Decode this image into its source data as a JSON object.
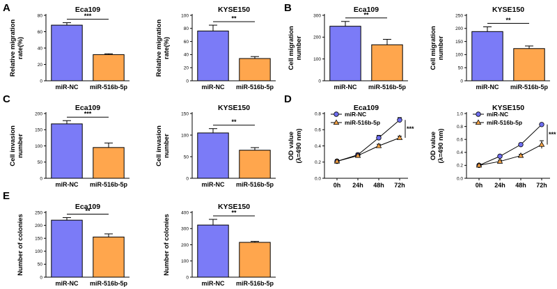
{
  "colors": {
    "mir_nc": "#7B7BF7",
    "mir_516b": "#FFA64D",
    "line_nc": "#6E6EF0",
    "line_516b": "#F5A448"
  },
  "panels": [
    "A",
    "B",
    "C",
    "D",
    "E"
  ],
  "chart_data": [
    {
      "id": "A1",
      "type": "bar",
      "title": "Eca109",
      "ylabel": "Relative migration\nrate(%)",
      "categories": [
        "miR-NC",
        "miR-516b-5p"
      ],
      "values": [
        68,
        32
      ],
      "errors": [
        3,
        1
      ],
      "ylim": [
        0,
        80
      ],
      "yticks": [
        0,
        20,
        40,
        60,
        80
      ],
      "significance": "***"
    },
    {
      "id": "A2",
      "type": "bar",
      "title": "KYSE150",
      "ylabel": "Relative migration\nrate(%)",
      "categories": [
        "miR-NC",
        "miR-516b-5p"
      ],
      "values": [
        76,
        34
      ],
      "errors": [
        9,
        3
      ],
      "ylim": [
        0,
        100
      ],
      "yticks": [
        0,
        20,
        40,
        60,
        80,
        100
      ],
      "significance": "**"
    },
    {
      "id": "B1",
      "type": "bar",
      "title": "Eca109",
      "ylabel": "Cell migration\nnumber",
      "categories": [
        "miR-NC",
        "miR-516b-5p"
      ],
      "values": [
        250,
        165
      ],
      "errors": [
        22,
        25
      ],
      "ylim": [
        0,
        300
      ],
      "yticks": [
        0,
        100,
        200,
        300
      ],
      "significance": "**"
    },
    {
      "id": "B2",
      "type": "bar",
      "title": "KYSE150",
      "ylabel": "Cell migration\nnumber",
      "categories": [
        "miR-NC",
        "miR-516b-5p"
      ],
      "values": [
        188,
        123
      ],
      "errors": [
        18,
        10
      ],
      "ylim": [
        0,
        250
      ],
      "yticks": [
        0,
        50,
        100,
        150,
        200,
        250
      ],
      "significance": "**"
    },
    {
      "id": "C1",
      "type": "bar",
      "title": "Eca109",
      "ylabel": "Cell invasion\nnumber",
      "categories": [
        "miR-NC",
        "miR-516b-5p"
      ],
      "values": [
        168,
        95
      ],
      "errors": [
        10,
        14
      ],
      "ylim": [
        0,
        200
      ],
      "yticks": [
        0,
        50,
        100,
        150,
        200
      ],
      "significance": "***"
    },
    {
      "id": "C2",
      "type": "bar",
      "title": "KYSE150",
      "ylabel": "Cell invasion\nnumber",
      "categories": [
        "miR-NC",
        "miR-516b-5p"
      ],
      "values": [
        105,
        65
      ],
      "errors": [
        10,
        6
      ],
      "ylim": [
        0,
        150
      ],
      "yticks": [
        0,
        50,
        100,
        150
      ],
      "significance": "**"
    },
    {
      "id": "D1",
      "type": "line",
      "title": "Eca109",
      "ylabel": "OD value\n(λ=490 nm)",
      "x": [
        "0h",
        "24h",
        "48h",
        "72h"
      ],
      "series": [
        {
          "name": "miR-NC",
          "values": [
            0.21,
            0.29,
            0.5,
            0.72
          ],
          "errors": [
            0.02,
            0.02,
            0.03,
            0.03
          ]
        },
        {
          "name": "miR-516b-5p",
          "values": [
            0.21,
            0.28,
            0.4,
            0.5
          ],
          "errors": [
            0.02,
            0.02,
            0.02,
            0.02
          ]
        }
      ],
      "ylim": [
        0,
        0.8
      ],
      "yticks": [
        0.0,
        0.2,
        0.4,
        0.6,
        0.8
      ],
      "significance": "***"
    },
    {
      "id": "D2",
      "type": "line",
      "title": "KYSE150",
      "ylabel": "OD value\n(λ=490 nm)",
      "x": [
        "0h",
        "24h",
        "48h",
        "72h"
      ],
      "series": [
        {
          "name": "miR-NC",
          "values": [
            0.2,
            0.34,
            0.52,
            0.83
          ],
          "errors": [
            0.02,
            0.02,
            0.02,
            0.02
          ]
        },
        {
          "name": "miR-516b-5p",
          "values": [
            0.2,
            0.26,
            0.35,
            0.52
          ],
          "errors": [
            0.02,
            0.02,
            0.02,
            0.06
          ]
        }
      ],
      "ylim": [
        0,
        1.0
      ],
      "yticks": [
        0.0,
        0.2,
        0.4,
        0.6,
        0.8,
        1.0
      ],
      "significance": "***"
    },
    {
      "id": "E1",
      "type": "bar",
      "title": "Eca109",
      "ylabel": "Number of colonies",
      "categories": [
        "miR-NC",
        "miR-516b-5p"
      ],
      "values": [
        220,
        155
      ],
      "errors": [
        10,
        12
      ],
      "ylim": [
        0,
        250
      ],
      "yticks": [
        0,
        50,
        100,
        150,
        200,
        250
      ],
      "significance": "**"
    },
    {
      "id": "E2",
      "type": "bar",
      "title": "KYSE150",
      "ylabel": "Number of colonies",
      "categories": [
        "miR-NC",
        "miR-516b-5p"
      ],
      "values": [
        322,
        215
      ],
      "errors": [
        35,
        6
      ],
      "ylim": [
        0,
        400
      ],
      "yticks": [
        0,
        100,
        200,
        300,
        400
      ],
      "significance": "**"
    }
  ]
}
